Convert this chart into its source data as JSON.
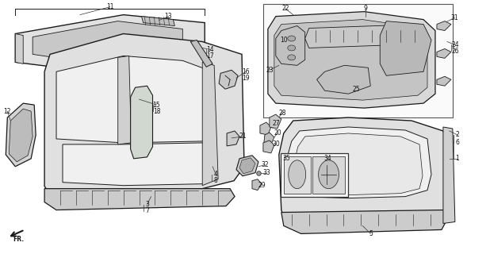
{
  "figsize": [
    6.18,
    3.2
  ],
  "dpi": 100,
  "background_color": "#ffffff",
  "line_color": "#1a1a1a",
  "fill_roof": "#e0e0e0",
  "fill_body": "#d8d8d8",
  "fill_inner": "#c8c8c8",
  "fill_dark": "#b0b0b0",
  "fill_white": "#f2f2f2",
  "label_fontsize": 5.5
}
